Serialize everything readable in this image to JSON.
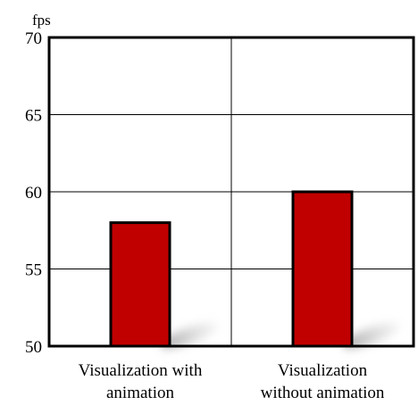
{
  "chart_data": {
    "type": "bar",
    "title": "",
    "xlabel": "",
    "ylabel": "fps",
    "ylim": [
      50,
      70
    ],
    "yticks": [
      50,
      55,
      60,
      65,
      70
    ],
    "grid": true,
    "categories": [
      [
        "Visualization with",
        "animation"
      ],
      [
        "Visualization",
        "without animation"
      ]
    ],
    "series": [
      {
        "values": [
          58,
          60
        ]
      }
    ],
    "colors": {
      "bar": "#c00000",
      "bar_outline": "#000000",
      "frame": "#000000",
      "gridline": "#000000"
    }
  }
}
